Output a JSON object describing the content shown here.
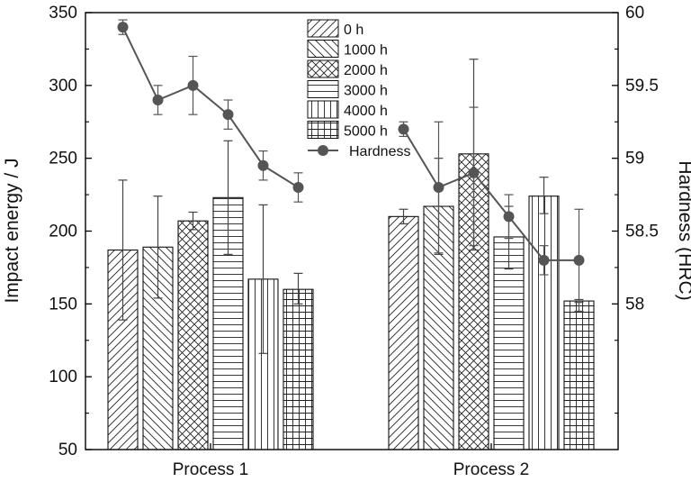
{
  "chart_data": {
    "type": "bar",
    "categories": [
      "Process 1",
      "Process 2"
    ],
    "left_axis": {
      "label": "Impact energy / J",
      "ylim": [
        50,
        350
      ],
      "ticks": [
        50,
        100,
        150,
        200,
        250,
        300,
        350
      ]
    },
    "right_axis": {
      "label": "Hardness (HRC)",
      "ylim": [
        57,
        60
      ],
      "ticks": [
        "58",
        "58.5",
        "59",
        "59.5",
        "60"
      ]
    },
    "bar_series": [
      {
        "name": "0 h",
        "pattern": "diag-up",
        "values": [
          187,
          210
        ],
        "err_low": [
          139,
          205
        ],
        "err_high": [
          235,
          215
        ]
      },
      {
        "name": "1000 h",
        "pattern": "diag-down",
        "values": [
          189,
          217
        ],
        "err_low": [
          154,
          184
        ],
        "err_high": [
          224,
          250
        ]
      },
      {
        "name": "2000 h",
        "pattern": "cross-diag",
        "values": [
          207,
          253
        ],
        "err_low": [
          201,
          187
        ],
        "err_high": [
          213,
          318
        ]
      },
      {
        "name": "3000 h",
        "pattern": "horizontal",
        "values": [
          223,
          196
        ],
        "err_low": [
          184,
          174
        ],
        "err_high": [
          262,
          217
        ]
      },
      {
        "name": "4000 h",
        "pattern": "vertical",
        "values": [
          167,
          224
        ],
        "err_low": [
          116,
          212
        ],
        "err_high": [
          218,
          237
        ]
      },
      {
        "name": "5000 h",
        "pattern": "grid",
        "values": [
          160,
          152
        ],
        "err_low": [
          150,
          151
        ],
        "err_high": [
          171,
          153
        ]
      }
    ],
    "hardness_series": {
      "name": "Hardness",
      "color": "#555555",
      "values": [
        59.9,
        59.4,
        59.5,
        59.3,
        58.95,
        58.8,
        59.2,
        58.8,
        58.9,
        58.6,
        58.3,
        58.3
      ],
      "err_low": [
        59.85,
        59.3,
        59.3,
        59.2,
        58.85,
        58.7,
        59.15,
        58.35,
        58.4,
        58.45,
        58.2,
        57.95
      ],
      "err_high": [
        59.95,
        59.5,
        59.7,
        59.4,
        59.05,
        58.9,
        59.25,
        59.25,
        59.35,
        58.75,
        58.4,
        58.65
      ]
    },
    "legend_position": "top-center",
    "grid": false,
    "colors": {
      "bar_fill": "#ffffff",
      "bar_stroke": "#111111",
      "hatch": "#222222",
      "error_bar": "#444444"
    }
  }
}
